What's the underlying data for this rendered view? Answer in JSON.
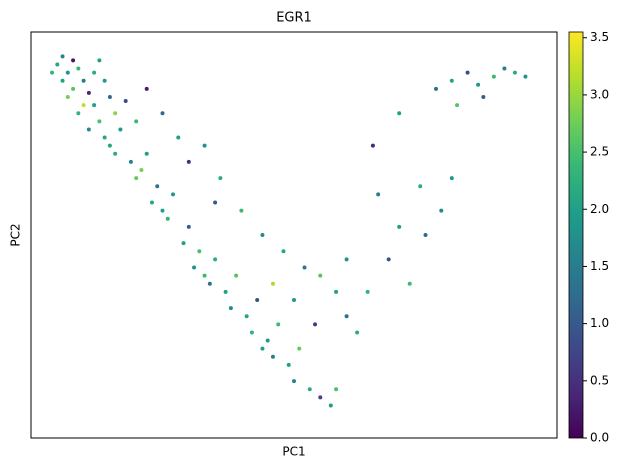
{
  "chart_data": {
    "type": "scatter",
    "title": "EGR1",
    "xlabel": "PC1",
    "ylabel": "PC2",
    "xlim": [
      0,
      100
    ],
    "ylim": [
      0,
      100
    ],
    "series": [
      {
        "x": [
          5,
          7,
          9,
          6,
          8,
          10,
          12,
          11,
          7,
          14,
          9,
          12,
          15,
          13,
          11,
          16,
          18,
          14,
          17,
          20,
          16,
          19,
          22,
          20,
          24,
          23,
          27,
          26,
          30,
          29,
          32,
          31,
          35,
          34,
          37,
          39,
          38,
          41,
          43,
          42,
          45,
          47,
          46,
          49,
          51,
          50,
          53,
          55,
          57,
          58,
          22,
          25,
          28,
          30,
          33,
          36,
          35,
          40,
          44,
          48,
          52,
          55,
          58,
          60,
          62,
          50,
          46,
          54,
          60,
          64,
          66,
          70,
          68,
          72,
          75,
          74,
          78,
          65,
          70,
          80,
          77,
          80,
          83,
          85,
          88,
          90,
          92,
          86,
          81,
          94,
          6,
          4,
          8,
          13,
          10,
          15,
          21,
          25,
          33,
          44
        ],
        "y": [
          92,
          90,
          91,
          88,
          86,
          88,
          90,
          85,
          84,
          88,
          80,
          82,
          84,
          78,
          76,
          80,
          83,
          74,
          76,
          78,
          70,
          68,
          70,
          64,
          62,
          58,
          60,
          54,
          52,
          48,
          46,
          42,
          44,
          38,
          36,
          40,
          32,
          30,
          34,
          26,
          24,
          28,
          20,
          18,
          22,
          14,
          12,
          10,
          8,
          12,
          86,
          80,
          74,
          68,
          72,
          64,
          58,
          56,
          50,
          46,
          42,
          40,
          36,
          30,
          26,
          34,
          38,
          28,
          44,
          36,
          60,
          52,
          44,
          38,
          50,
          62,
          56,
          72,
          80,
          64,
          86,
          88,
          90,
          87,
          89,
          91,
          90,
          84,
          82,
          89,
          94,
          90,
          93,
          93,
          82,
          72,
          66,
          56,
          40,
          22
        ],
        "values": [
          2.1,
          1.8,
          2.4,
          2.0,
          2.6,
          1.5,
          2.2,
          0.4,
          2.8,
          1.9,
          2.3,
          2.0,
          1.2,
          2.5,
          1.7,
          2.9,
          0.8,
          2.1,
          1.9,
          2.4,
          2.2,
          1.6,
          2.0,
          2.7,
          1.4,
          2.1,
          1.9,
          2.3,
          1.1,
          2.0,
          2.5,
          1.8,
          2.2,
          1.3,
          2.0,
          2.6,
          1.7,
          2.1,
          0.9,
          2.3,
          1.9,
          2.4,
          1.5,
          2.0,
          2.7,
          1.6,
          2.2,
          0.7,
          2.0,
          2.5,
          0.3,
          1.2,
          2.0,
          0.5,
          1.8,
          2.2,
          1.0,
          2.4,
          1.7,
          2.1,
          1.4,
          2.6,
          2.0,
          1.3,
          2.2,
          1.9,
          3.1,
          0.6,
          1.8,
          2.3,
          1.5,
          2.0,
          0.9,
          2.4,
          1.2,
          2.2,
          1.7,
          0.4,
          2.0,
          1.9,
          1.3,
          2.1,
          0.8,
          1.9,
          2.4,
          1.5,
          2.2,
          1.0,
          2.6,
          1.8,
          1.6,
          2.3,
          0.2,
          2.0,
          3.2,
          2.1,
          2.8,
          2.0,
          2.4,
          2.0
        ]
      }
    ],
    "colormap": [
      "#440154",
      "#482878",
      "#3e4989",
      "#31688e",
      "#26828e",
      "#1f9e89",
      "#35b779",
      "#6ece58",
      "#b5de2b",
      "#fde725"
    ],
    "clim": [
      0,
      3.55
    ],
    "cticks": [
      {
        "value": 0,
        "label": "0.0"
      },
      {
        "value": 0.5,
        "label": "0.5"
      },
      {
        "value": 1,
        "label": "1.0"
      },
      {
        "value": 1.5,
        "label": "1.5"
      },
      {
        "value": 2,
        "label": "2.0"
      },
      {
        "value": 2.5,
        "label": "2.5"
      },
      {
        "value": 3,
        "label": "3.0"
      },
      {
        "value": 3.5,
        "label": "3.5"
      }
    ]
  }
}
